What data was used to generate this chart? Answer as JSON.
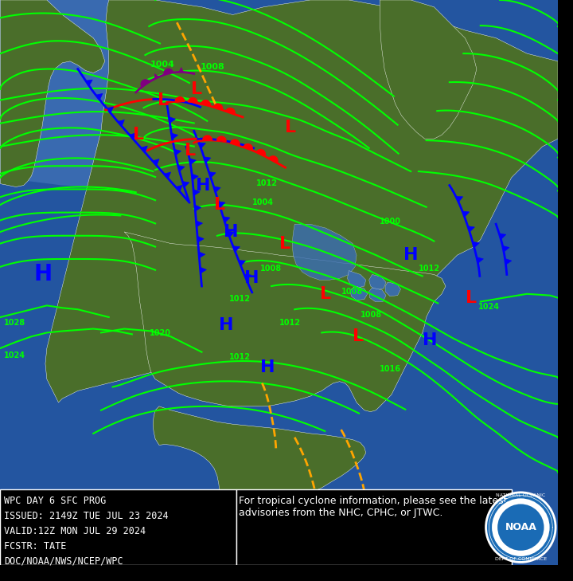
{
  "title": "WPC DAY 6 SFC PROG",
  "issued": "ISSUED: 2149Z TUE JUL 23 2024",
  "valid": "VALID:12Z MON JUL 29 2024",
  "fcstr": "FCSTR: TATE",
  "source": "DOC/NOAA/NWS/NCEP/WPC",
  "tropical_note": "For tropical cyclone information, please see the latest\nadvisories from the NHC, CPHC, or JTWC.",
  "bg_color": "#1a3a6b",
  "land_color": "#3a5a20",
  "text_box_bg": "#000000",
  "text_color": "#ffffff",
  "isobar_color": "#00ff00",
  "figsize": [
    7.2,
    7.29
  ],
  "dpi": 100
}
